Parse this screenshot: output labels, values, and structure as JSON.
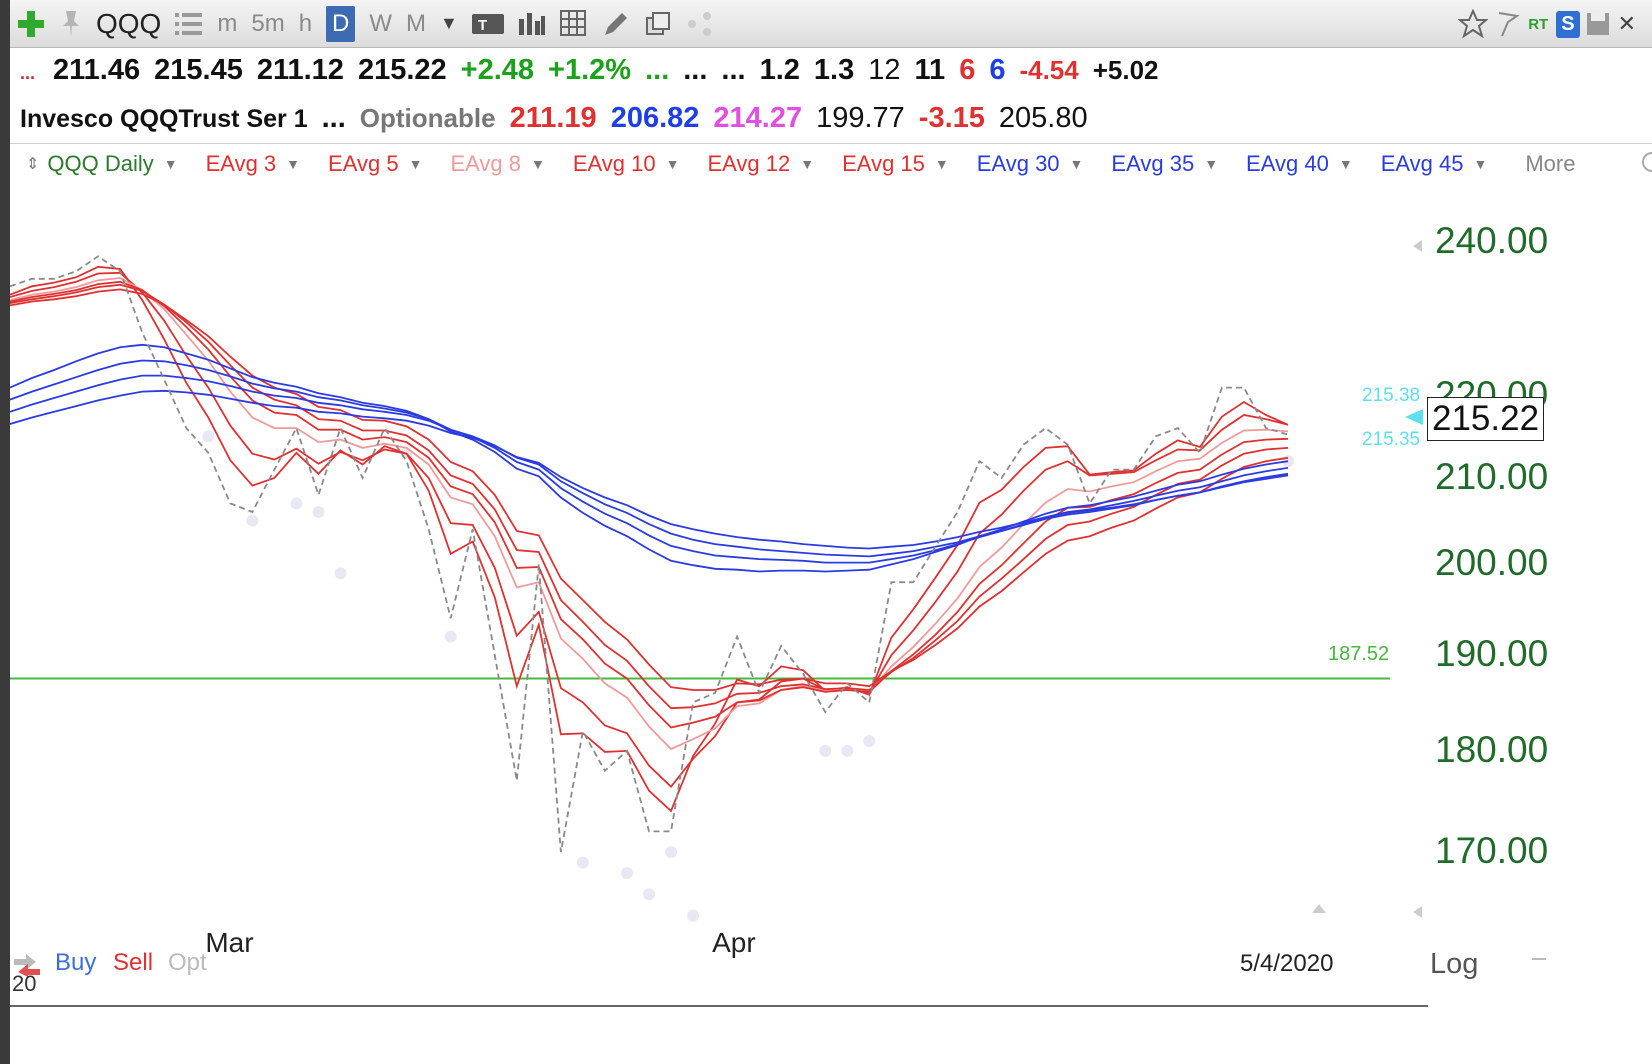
{
  "toolbar": {
    "symbol": "QQQ",
    "intervals": [
      "m",
      "5m",
      "h",
      "D",
      "W",
      "M"
    ],
    "active_interval": "D",
    "type_button": "T",
    "realtime": "RT",
    "s_badge": "S"
  },
  "quote_row1": {
    "open": "211.46",
    "high": "215.45",
    "low": "211.12",
    "close": "215.22",
    "change": "+2.48",
    "change_pct": "+1.2%",
    "dots_green": "...",
    "dots_a": "...",
    "dots_b": "...",
    "v1": "1.2",
    "v2": "1.3",
    "v3": "12",
    "v4": "11",
    "v5": "6",
    "v6": "6",
    "v7": "-4.54",
    "v8": "+5.02"
  },
  "quote_row2": {
    "name": "Invesco QQQTrust Ser 1",
    "dots": "...",
    "optionable": "Optionable",
    "p1": "211.19",
    "p2": "206.82",
    "p3": "214.27",
    "p4": "199.77",
    "p5": "-3.15",
    "p6": "205.80"
  },
  "indicators": {
    "main": "QQQ Daily",
    "items": [
      {
        "label": "EAvg 3",
        "color": "#e03030"
      },
      {
        "label": "EAvg 5",
        "color": "#e03030"
      },
      {
        "label": "EAvg 8",
        "color": "#f29a9a"
      },
      {
        "label": "EAvg 10",
        "color": "#e03030"
      },
      {
        "label": "EAvg 12",
        "color": "#e03030"
      },
      {
        "label": "EAvg 15",
        "color": "#e03030"
      },
      {
        "label": "EAvg 30",
        "color": "#2a3be0"
      },
      {
        "label": "EAvg 35",
        "color": "#2a3be0"
      },
      {
        "label": "EAvg 40",
        "color": "#2a3be0"
      },
      {
        "label": "EAvg 45",
        "color": "#2a3be0"
      }
    ],
    "more": "More"
  },
  "chart_data": {
    "type": "line",
    "scale": "log",
    "ylim": [
      165,
      245
    ],
    "y_ticks": [
      240,
      220,
      210,
      200,
      190,
      180,
      170
    ],
    "y_tick_labels": [
      "240.00",
      "220.00",
      "210.00",
      "200.00",
      "190.00",
      "180.00",
      "170.00"
    ],
    "x_tick_labels": [
      "Mar",
      "Apr"
    ],
    "x_tick_index": [
      10,
      33
    ],
    "last_price": "215.22",
    "side_values": [
      "215.38",
      "215.35"
    ],
    "horizontal_level": {
      "value": 187.52,
      "label": "187.52",
      "color": "#45b83d"
    },
    "date": "5/4/2020",
    "axis_mode": "Log",
    "close": [
      234,
      235,
      235,
      236,
      238,
      236,
      228,
      222,
      216,
      213,
      207,
      206,
      211,
      216,
      208,
      216,
      210,
      216,
      212,
      204,
      194,
      204,
      190,
      177,
      200,
      170,
      182,
      178,
      180,
      172,
      172,
      185,
      186,
      192,
      186,
      191,
      188,
      184,
      187,
      185,
      198,
      198,
      202,
      206,
      212,
      210,
      214,
      216,
      214,
      207,
      211,
      211,
      215,
      216,
      213,
      221,
      221,
      216,
      215.22
    ],
    "lows": [
      null,
      null,
      null,
      null,
      null,
      null,
      null,
      null,
      null,
      215,
      null,
      205,
      null,
      207,
      206,
      199,
      null,
      null,
      213,
      null,
      192,
      null,
      null,
      null,
      null,
      null,
      169,
      null,
      168,
      166,
      170,
      164,
      null,
      null,
      null,
      null,
      null,
      180,
      180,
      181,
      null,
      null,
      null,
      null,
      null,
      null,
      null,
      null,
      null,
      null,
      null,
      null,
      null,
      null,
      null,
      null,
      null,
      null,
      212
    ],
    "series": [
      {
        "name": "EAvg 3",
        "color": "#e03030",
        "values": [
          232.9,
          234.0,
          234.5,
          235.2,
          236.6,
          236.3,
          232.2,
          227.1,
          221.6,
          217.3,
          212.1,
          209.1,
          210.0,
          213.0,
          210.5,
          213.3,
          211.6,
          213.8,
          212.9,
          208.5,
          201.2,
          202.6,
          196.3,
          186.7,
          193.3,
          181.7,
          181.8,
          179.9,
          180.0,
          176.0,
          174.0,
          179.5,
          182.8,
          187.4,
          186.7,
          188.8,
          188.4,
          186.2,
          186.6,
          185.8,
          191.9,
          195.0,
          198.5,
          202.2,
          207.1,
          208.6,
          211.3,
          213.6,
          213.8,
          210.4,
          210.7,
          210.9,
          212.9,
          214.5,
          213.7,
          217.4,
          219.2,
          217.6,
          216.4
        ]
      },
      {
        "name": "EAvg 5",
        "color": "#e03030",
        "values": [
          232.6,
          233.4,
          233.9,
          234.6,
          235.7,
          235.8,
          233.2,
          229.5,
          225.0,
          221.0,
          216.3,
          212.9,
          212.2,
          213.5,
          211.7,
          213.1,
          212.1,
          213.4,
          212.9,
          210.0,
          204.7,
          204.5,
          199.6,
          192.1,
          194.7,
          186.5,
          185.0,
          182.6,
          181.8,
          178.5,
          176.4,
          179.2,
          181.5,
          185.0,
          185.3,
          187.2,
          187.5,
          186.3,
          186.5,
          186.0,
          190.0,
          192.7,
          195.8,
          199.2,
          203.5,
          205.7,
          208.5,
          211.0,
          212.0,
          210.3,
          210.5,
          210.7,
          212.1,
          213.4,
          213.3,
          215.8,
          217.6,
          217.1,
          216.4
        ]
      },
      {
        "name": "EAvg 8",
        "color": "#f29a9a",
        "values": [
          232.2,
          232.9,
          233.3,
          233.9,
          234.8,
          235.1,
          233.5,
          231.0,
          227.7,
          224.4,
          220.5,
          217.3,
          216.0,
          216.0,
          214.3,
          214.6,
          213.6,
          214.1,
          213.6,
          211.6,
          207.7,
          206.9,
          203.2,
          197.4,
          198.0,
          191.8,
          189.6,
          187.0,
          185.5,
          182.5,
          180.2,
          181.2,
          182.3,
          184.6,
          184.9,
          186.3,
          186.7,
          186.2,
          186.4,
          186.1,
          188.8,
          190.9,
          193.4,
          196.2,
          199.7,
          201.9,
          204.6,
          207.1,
          208.7,
          208.4,
          209.0,
          209.5,
          210.8,
          212.0,
          212.3,
          214.2,
          215.7,
          215.8,
          215.6
        ]
      },
      {
        "name": "EAvg 10",
        "color": "#e03030",
        "values": [
          232.0,
          232.6,
          233.0,
          233.5,
          234.3,
          234.6,
          233.5,
          231.4,
          228.7,
          225.8,
          222.4,
          219.4,
          217.9,
          217.6,
          215.8,
          215.8,
          214.6,
          214.9,
          214.3,
          212.4,
          209.0,
          208.1,
          204.8,
          199.6,
          199.7,
          193.9,
          191.7,
          189.1,
          187.5,
          184.7,
          182.4,
          182.9,
          183.5,
          185.0,
          185.2,
          186.3,
          186.6,
          186.1,
          186.3,
          186.1,
          188.3,
          190.1,
          192.2,
          194.7,
          197.8,
          199.9,
          202.4,
          204.9,
          206.5,
          206.6,
          207.4,
          208.1,
          209.4,
          210.6,
          211.0,
          212.8,
          214.3,
          214.6,
          214.7
        ]
      },
      {
        "name": "EAvg 12",
        "color": "#e03030",
        "values": [
          231.8,
          232.3,
          232.7,
          233.2,
          233.9,
          234.2,
          233.4,
          231.6,
          229.3,
          226.8,
          223.8,
          221.0,
          219.5,
          218.8,
          217.1,
          216.9,
          215.7,
          215.7,
          215.1,
          213.3,
          210.3,
          209.3,
          206.3,
          201.6,
          201.4,
          196.0,
          193.6,
          191.1,
          189.4,
          186.7,
          184.4,
          184.5,
          184.9,
          185.9,
          186.0,
          186.7,
          186.9,
          186.4,
          186.5,
          186.3,
          188.2,
          189.7,
          191.6,
          193.7,
          196.4,
          198.4,
          200.6,
          202.9,
          204.5,
          204.9,
          205.8,
          206.6,
          208.0,
          209.3,
          209.8,
          211.5,
          212.9,
          213.4,
          213.6
        ]
      },
      {
        "name": "EAvg 15",
        "color": "#e03030",
        "values": [
          231.5,
          232.0,
          232.3,
          232.7,
          233.3,
          233.6,
          233.0,
          231.6,
          229.6,
          227.5,
          224.9,
          222.5,
          221.0,
          220.2,
          218.6,
          218.2,
          217.0,
          216.9,
          216.2,
          214.6,
          211.9,
          210.8,
          208.0,
          203.8,
          203.3,
          198.4,
          196.0,
          193.6,
          191.7,
          189.0,
          186.6,
          186.3,
          186.3,
          187.0,
          186.9,
          187.4,
          187.5,
          187.0,
          187.0,
          186.7,
          188.3,
          189.5,
          191.1,
          192.9,
          195.3,
          197.0,
          199.1,
          201.2,
          202.7,
          203.2,
          204.2,
          205.0,
          206.4,
          207.7,
          208.3,
          209.9,
          211.3,
          212.0,
          212.4
        ]
      },
      {
        "name": "EAvg 30",
        "color": "#2a3be0",
        "values": [
          221.0,
          222.2,
          223.2,
          224.3,
          225.3,
          226.1,
          226.4,
          226.1,
          225.3,
          224.5,
          223.4,
          222.3,
          221.6,
          221.1,
          220.3,
          219.8,
          219.1,
          218.7,
          218.1,
          217.1,
          215.6,
          214.6,
          213.1,
          211.1,
          210.2,
          207.7,
          205.9,
          204.4,
          203.2,
          201.7,
          200.4,
          199.9,
          199.5,
          199.4,
          199.2,
          199.3,
          199.3,
          199.2,
          199.3,
          199.4,
          200.0,
          200.6,
          201.4,
          202.2,
          203.2,
          204.0,
          204.9,
          205.8,
          206.5,
          206.8,
          207.3,
          207.8,
          208.5,
          209.2,
          209.6,
          210.4,
          211.1,
          211.6,
          212.0
        ]
      },
      {
        "name": "EAvg 35",
        "color": "#2a3be0",
        "values": [
          219.5,
          220.5,
          221.4,
          222.3,
          223.2,
          224.0,
          224.4,
          224.3,
          223.8,
          223.2,
          222.4,
          221.5,
          220.9,
          220.5,
          219.8,
          219.4,
          218.8,
          218.4,
          217.9,
          217.1,
          215.8,
          214.9,
          213.6,
          211.9,
          211.0,
          208.8,
          207.2,
          205.8,
          204.7,
          203.3,
          202.1,
          201.5,
          201.0,
          200.8,
          200.6,
          200.5,
          200.4,
          200.2,
          200.2,
          200.2,
          200.6,
          201.0,
          201.6,
          202.3,
          203.1,
          203.8,
          204.6,
          205.4,
          206.0,
          206.3,
          206.8,
          207.3,
          207.9,
          208.5,
          208.9,
          209.6,
          210.3,
          210.8,
          211.2
        ]
      },
      {
        "name": "EAvg 40",
        "color": "#2a3be0",
        "values": [
          218.0,
          218.9,
          219.7,
          220.5,
          221.3,
          222.0,
          222.5,
          222.5,
          222.2,
          221.8,
          221.2,
          220.5,
          220.0,
          219.7,
          219.1,
          218.8,
          218.3,
          218.0,
          217.6,
          216.9,
          215.8,
          215.0,
          213.9,
          212.4,
          211.6,
          209.6,
          208.2,
          206.9,
          205.9,
          204.6,
          203.5,
          202.8,
          202.3,
          202.0,
          201.7,
          201.5,
          201.3,
          201.1,
          201.0,
          200.9,
          201.2,
          201.5,
          202.0,
          202.5,
          203.2,
          203.8,
          204.5,
          205.2,
          205.7,
          206.0,
          206.4,
          206.8,
          207.4,
          207.9,
          208.3,
          209.0,
          209.6,
          210.1,
          210.5
        ]
      },
      {
        "name": "EAvg 45",
        "color": "#2a3be0",
        "values": [
          216.5,
          217.3,
          218.0,
          218.7,
          219.4,
          220.0,
          220.5,
          220.6,
          220.4,
          220.1,
          219.6,
          219.1,
          218.7,
          218.5,
          218.0,
          217.8,
          217.4,
          217.2,
          216.9,
          216.3,
          215.4,
          214.8,
          213.8,
          212.5,
          211.8,
          210.1,
          208.8,
          207.7,
          206.8,
          205.6,
          204.6,
          204.0,
          203.5,
          203.1,
          202.8,
          202.6,
          202.3,
          202.1,
          201.9,
          201.8,
          202.0,
          202.2,
          202.6,
          203.1,
          203.7,
          204.2,
          204.8,
          205.4,
          205.9,
          206.2,
          206.5,
          206.9,
          207.4,
          207.9,
          208.3,
          208.9,
          209.5,
          209.9,
          210.3
        ]
      }
    ]
  },
  "bottom": {
    "buy": "Buy",
    "sell": "Sell",
    "opt": "Opt",
    "left_fragment": "20"
  }
}
